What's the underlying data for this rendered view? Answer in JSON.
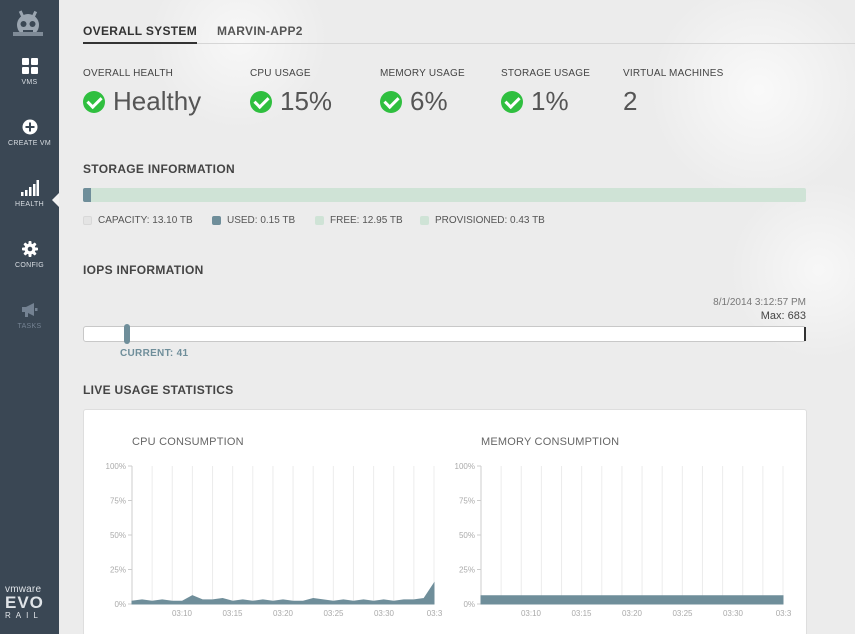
{
  "sidebar": {
    "items": [
      {
        "label": "VMS",
        "icon": "grid-icon"
      },
      {
        "label": "CREATE VM",
        "icon": "plus-circle-icon"
      },
      {
        "label": "HEALTH",
        "icon": "signal-bars-icon"
      },
      {
        "label": "CONFIG",
        "icon": "gear-icon"
      },
      {
        "label": "TASKS",
        "icon": "megaphone-icon"
      }
    ],
    "active": "HEALTH",
    "brand": {
      "vm": "vmware",
      "evo": "EVO",
      "rail": "RAIL"
    }
  },
  "tabs": [
    {
      "label": "OVERALL SYSTEM",
      "active": true
    },
    {
      "label": "MARVIN-APP2",
      "active": false
    }
  ],
  "metrics": [
    {
      "label": "OVERALL HEALTH",
      "value": "Healthy",
      "ok": true
    },
    {
      "label": "CPU USAGE",
      "value": "15%",
      "ok": true
    },
    {
      "label": "MEMORY USAGE",
      "value": "6%",
      "ok": true
    },
    {
      "label": "STORAGE USAGE",
      "value": "1%",
      "ok": true
    },
    {
      "label": "VIRTUAL MACHINES",
      "value": "2",
      "ok": false
    }
  ],
  "storage": {
    "title": "STORAGE INFORMATION",
    "used_fraction": 0.0115,
    "legend": [
      {
        "label": "CAPACITY: 13.10 TB",
        "color": "#ececec"
      },
      {
        "label": "USED: 0.15 TB",
        "color": "#6f8e9a"
      },
      {
        "label": "FREE: 12.95 TB",
        "color": "#cfe3d6"
      },
      {
        "label": "PROVISIONED: 0.43 TB",
        "color": "#cfe3d6"
      }
    ]
  },
  "iops": {
    "title": "IOPS INFORMATION",
    "timestamp": "8/1/2014 3:12:57 PM",
    "max_label": "Max: 683",
    "current_label": "CURRENT: 41",
    "current": 41,
    "max": 683
  },
  "live": {
    "title": "LIVE USAGE STATISTICS"
  },
  "chart_data": [
    {
      "type": "area",
      "title": "CPU CONSUMPTION",
      "y_ticks": [
        "100%",
        "75%",
        "50%",
        "25%",
        "0%"
      ],
      "x_ticks": [
        "03:10",
        "03:15",
        "03:20",
        "03:25",
        "03:30",
        "03:3"
      ],
      "ylim": [
        0,
        100
      ],
      "x": [
        0,
        1,
        2,
        3,
        4,
        5,
        6,
        7,
        8,
        9,
        10,
        11,
        12,
        13,
        14,
        15,
        16,
        17,
        18,
        19,
        20,
        21,
        22,
        23,
        24,
        25,
        26,
        27,
        28,
        29,
        30
      ],
      "values": [
        2,
        3,
        2,
        3,
        2,
        2,
        6,
        3,
        3,
        4,
        2,
        3,
        2,
        3,
        2,
        3,
        2,
        2,
        4,
        3,
        2,
        3,
        2,
        3,
        2,
        3,
        2,
        3,
        3,
        4,
        15
      ],
      "grid": true
    },
    {
      "type": "area",
      "title": "MEMORY CONSUMPTION",
      "y_ticks": [
        "100%",
        "75%",
        "50%",
        "25%",
        "0%"
      ],
      "x_ticks": [
        "03:10",
        "03:15",
        "03:20",
        "03:25",
        "03:30",
        "03:3"
      ],
      "ylim": [
        0,
        100
      ],
      "x": [
        0,
        30
      ],
      "values": [
        6,
        6
      ],
      "grid": true
    }
  ]
}
